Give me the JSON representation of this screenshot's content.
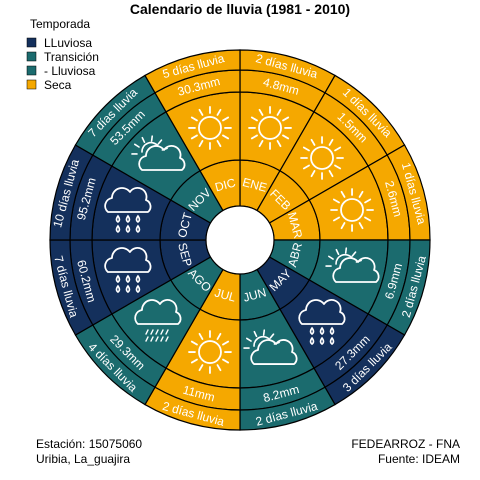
{
  "chart_data": {
    "type": "radial-calendar",
    "title": "Calendario de lluvia (1981 - 2010)",
    "legend": {
      "title": "Temporada",
      "entries": [
        {
          "label": "LLuviosa",
          "color": "#14305c"
        },
        {
          "label": "Transición",
          "color": "#1b6b6e"
        },
        {
          "label": "- Lluviosa",
          "color": "#1b6b6e"
        },
        {
          "label": "Seca",
          "color": "#f5a800"
        }
      ]
    },
    "months": [
      {
        "label": "ENE",
        "season": "Seca",
        "rain": "4.8mm",
        "days": "2 días lluvia",
        "icon": "sun"
      },
      {
        "label": "FEB",
        "season": "Seca",
        "rain": "1.5mm",
        "days": "1 días lluvia",
        "icon": "sun"
      },
      {
        "label": "MAR",
        "season": "Seca",
        "rain": "2.6mm",
        "days": "1 días lluvia",
        "icon": "sun"
      },
      {
        "label": "ABR",
        "season": "Transición",
        "rain": "6.9mm",
        "days": "2 días lluvia",
        "icon": "cloud-sun"
      },
      {
        "label": "MAY",
        "season": "LLuviosa",
        "rain": "27.3mm",
        "days": "3 días lluvia",
        "icon": "rain-cloud"
      },
      {
        "label": "JUN",
        "season": "Transición",
        "rain": "8.2mm",
        "days": "2 días lluvia",
        "icon": "cloud-sun"
      },
      {
        "label": "JUL",
        "season": "Seca",
        "rain": "11mm",
        "days": "2 días lluvia",
        "icon": "sun"
      },
      {
        "label": "AGO",
        "season": "Transición",
        "rain": "29.3mm",
        "days": "4 días lluvia",
        "icon": "drizzle-cloud"
      },
      {
        "label": "SEP",
        "season": "LLuviosa",
        "rain": "60.2mm",
        "days": "7 días lluvia",
        "icon": "rain-cloud"
      },
      {
        "label": "OCT",
        "season": "LLuviosa",
        "rain": "95.2mm",
        "days": "10 días lluvia",
        "icon": "rain-cloud"
      },
      {
        "label": "NOV",
        "season": "Transición",
        "rain": "53.5mm",
        "days": "7 días lluvia",
        "icon": "cloud-sun"
      },
      {
        "label": "DIC",
        "season": "Seca",
        "rain": "30.3mm",
        "days": "5 días lluvia",
        "icon": "sun"
      }
    ],
    "season_colors": {
      "Seca": "#f5a800",
      "Transición": "#1b6b6e",
      "LLuviosa": "#14305c"
    }
  },
  "footer": {
    "station": "Estación: 15075060",
    "location": "Uribia, La_guajira",
    "org": "FEDEARROZ - FNA",
    "source": "Fuente: IDEAM"
  }
}
